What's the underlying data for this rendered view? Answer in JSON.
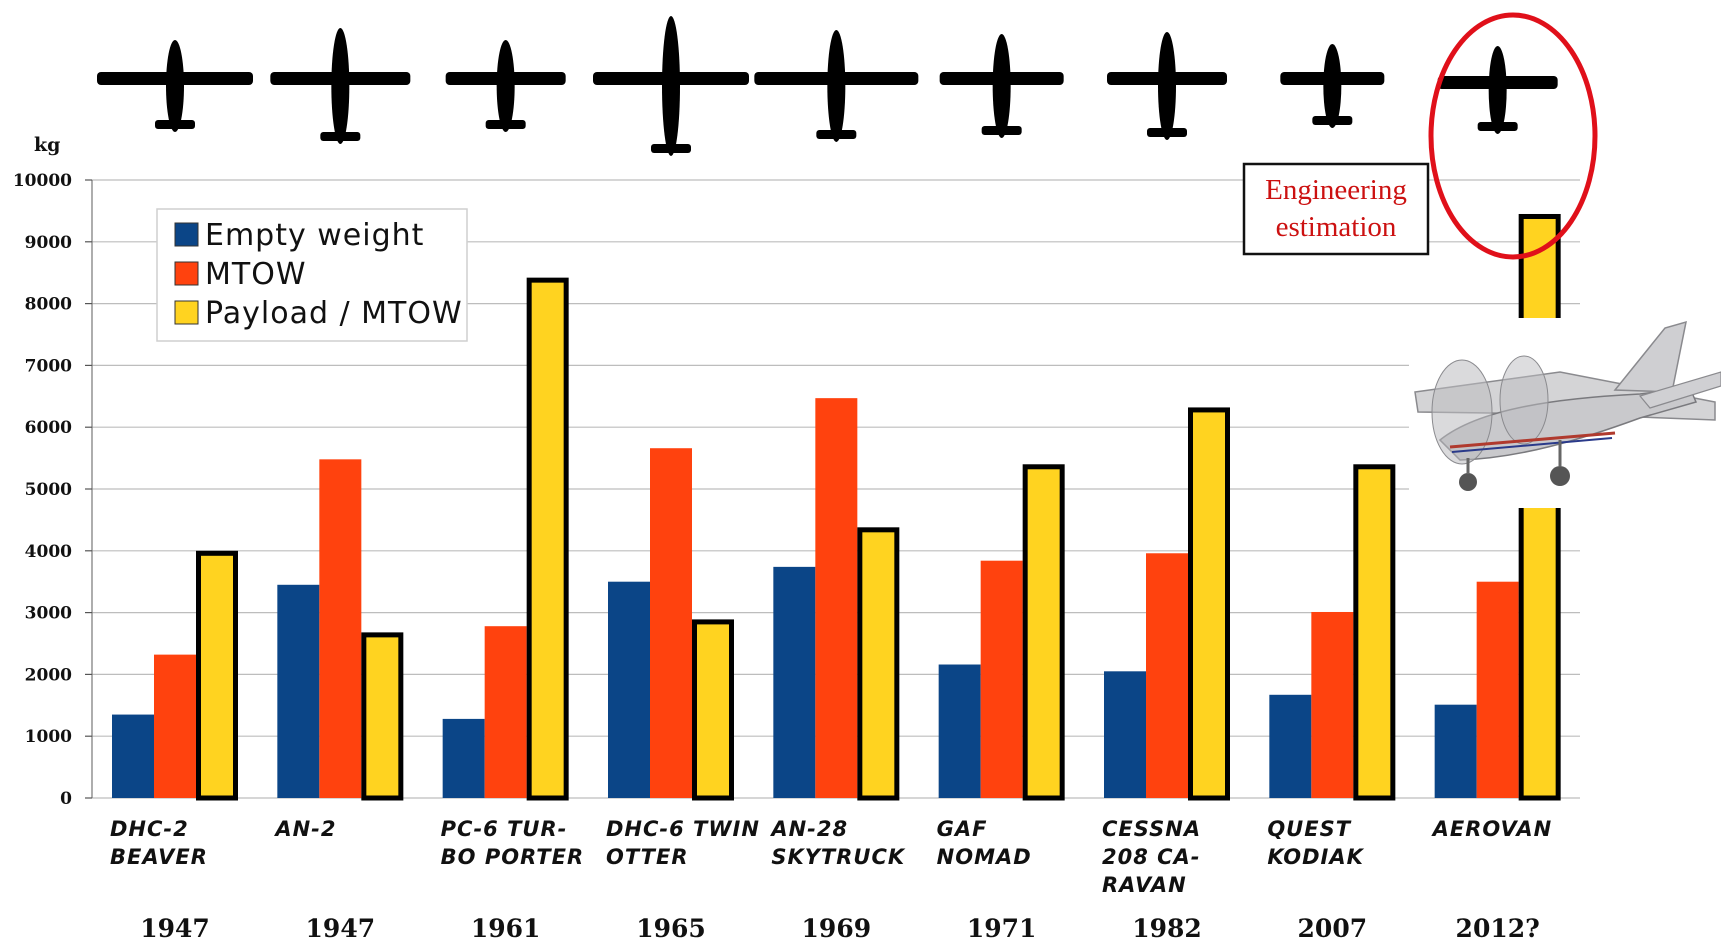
{
  "chart_data": {
    "type": "bar",
    "unit_label": "kg",
    "ylim": [
      0,
      10000
    ],
    "yticks": [
      0,
      1000,
      2000,
      3000,
      4000,
      5000,
      6000,
      7000,
      8000,
      9000,
      10000
    ],
    "grid": true,
    "legend_position": "top-left",
    "categories": [
      [
        "DHC-2",
        "BEAVER"
      ],
      [
        "AN-2"
      ],
      [
        "PC-6 TUR-",
        "BO PORTER"
      ],
      [
        "DHC-6 TWIN",
        "OTTER"
      ],
      [
        "AN-28",
        "SKYTRUCK"
      ],
      [
        "GAF",
        "NOMAD"
      ],
      [
        "CESSNA",
        "208 CA-",
        "RAVAN"
      ],
      [
        "QUEST",
        "KODIAK"
      ],
      [
        "AEROVAN"
      ]
    ],
    "years": [
      "1947",
      "1947",
      "1961",
      "1965",
      "1969",
      "1971",
      "1982",
      "2007",
      "2012?"
    ],
    "series": [
      {
        "name": "Empty weight",
        "color": "#0b4587",
        "values": [
          1350,
          3450,
          1280,
          3500,
          3740,
          2160,
          2050,
          1670,
          1510
        ]
      },
      {
        "name": "MTOW",
        "color": "#ff420e",
        "values": [
          2320,
          5480,
          2780,
          5660,
          6470,
          3840,
          3960,
          3010,
          3500
        ]
      },
      {
        "name": "Payload / MTOW",
        "color": "#ffd320",
        "values": [
          4000,
          2680,
          8420,
          2890,
          4380,
          5400,
          6320,
          5400,
          9450
        ]
      }
    ],
    "annotation": [
      "Engineering",
      "estimation"
    ],
    "annotation_color": "#cc1111",
    "highlight_category_index": 8
  }
}
